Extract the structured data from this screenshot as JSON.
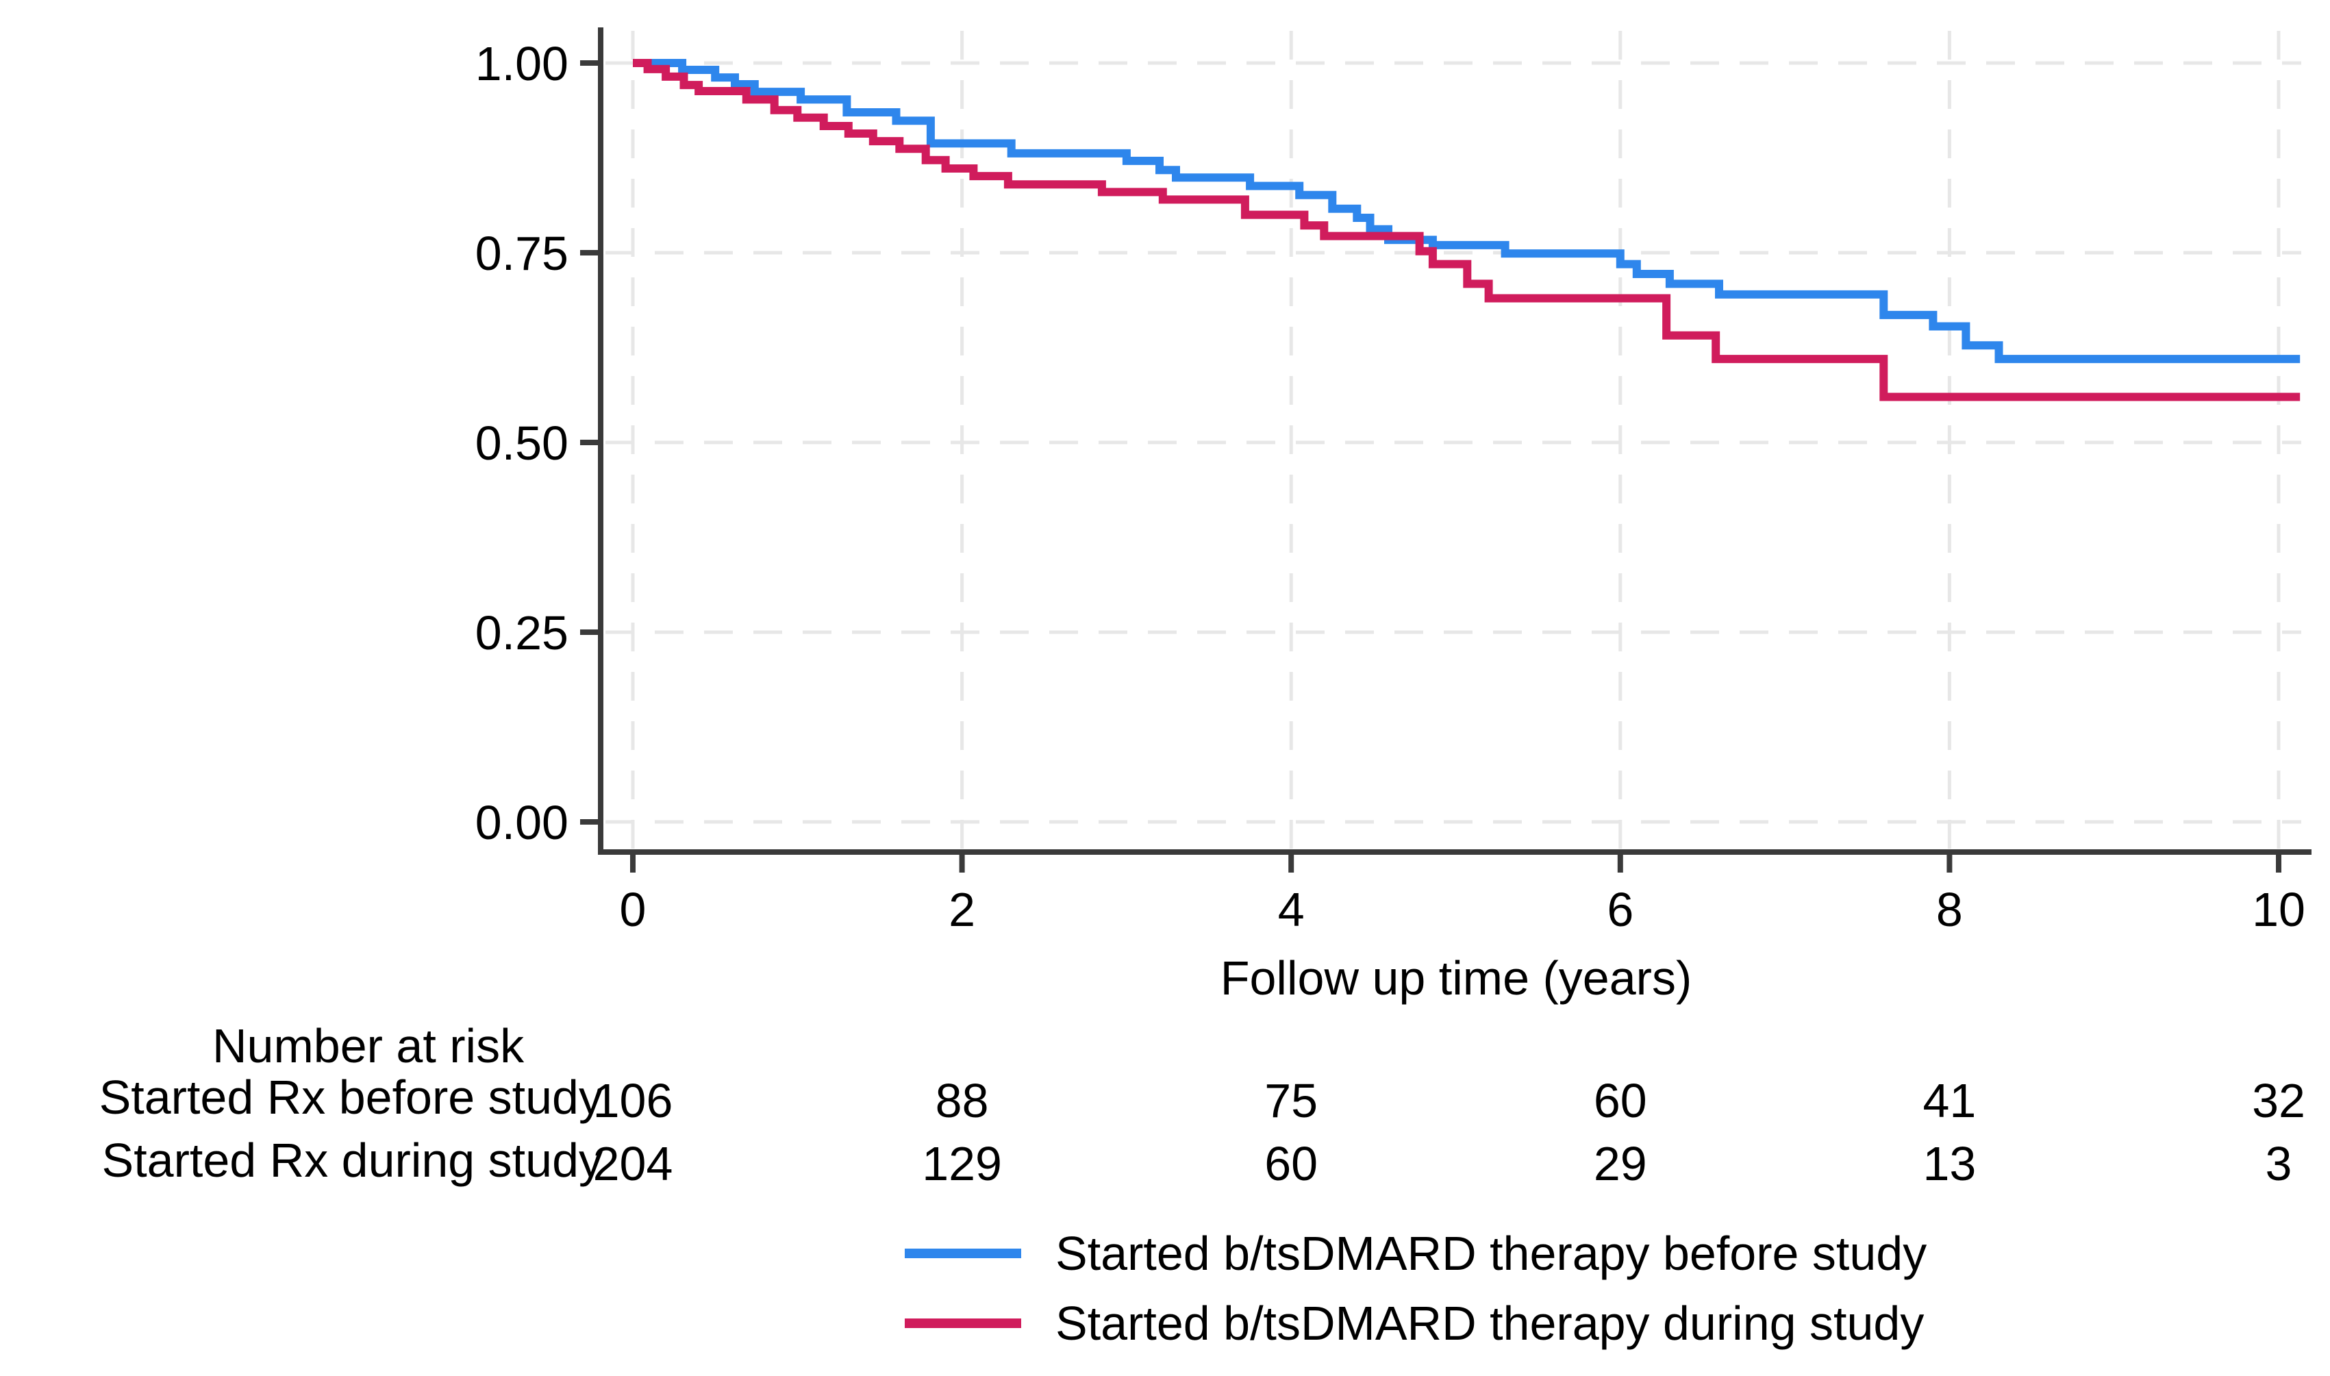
{
  "chart_data": {
    "type": "line",
    "subtype": "kaplan-meier-step",
    "title": "",
    "xlabel": "Follow up time (years)",
    "ylabel": "",
    "xlim": [
      0,
      10
    ],
    "ylim": [
      0.0,
      1.0
    ],
    "x_ticks": [
      0,
      2,
      4,
      6,
      8,
      10
    ],
    "y_ticks": [
      1.0,
      0.75,
      0.5,
      0.25,
      0.0
    ],
    "y_tick_labels": [
      "1.00",
      "0.75",
      "0.50",
      "0.25",
      "0.00"
    ],
    "grid": "dashed, both directions, light gray",
    "legend_position": "bottom",
    "series": [
      {
        "name": "Started b/tsDMARD therapy before study",
        "color": "#2E86EC",
        "points": [
          [
            0,
            1.0
          ],
          [
            0.3,
            0.991
          ],
          [
            0.5,
            0.981
          ],
          [
            0.62,
            0.972
          ],
          [
            0.74,
            0.962
          ],
          [
            1.02,
            0.952
          ],
          [
            1.3,
            0.935
          ],
          [
            1.6,
            0.924
          ],
          [
            1.81,
            0.894
          ],
          [
            2.3,
            0.881
          ],
          [
            3.0,
            0.871
          ],
          [
            3.2,
            0.859
          ],
          [
            3.3,
            0.849
          ],
          [
            3.75,
            0.838
          ],
          [
            4.05,
            0.826
          ],
          [
            4.25,
            0.808
          ],
          [
            4.4,
            0.796
          ],
          [
            4.48,
            0.781
          ],
          [
            4.59,
            0.767
          ],
          [
            4.86,
            0.76
          ],
          [
            5.3,
            0.749
          ],
          [
            6.0,
            0.735
          ],
          [
            6.1,
            0.722
          ],
          [
            6.3,
            0.709
          ],
          [
            6.6,
            0.695
          ],
          [
            7.6,
            0.668
          ],
          [
            7.9,
            0.653
          ],
          [
            8.1,
            0.628
          ],
          [
            8.3,
            0.61
          ],
          [
            10.13,
            0.61
          ]
        ]
      },
      {
        "name": "Started b/tsDMARD therapy during study",
        "color": "#D01C5C",
        "points": [
          [
            0,
            1.0
          ],
          [
            0.09,
            0.992
          ],
          [
            0.2,
            0.982
          ],
          [
            0.31,
            0.971
          ],
          [
            0.4,
            0.963
          ],
          [
            0.69,
            0.952
          ],
          [
            0.86,
            0.938
          ],
          [
            1.0,
            0.928
          ],
          [
            1.16,
            0.917
          ],
          [
            1.31,
            0.907
          ],
          [
            1.46,
            0.897
          ],
          [
            1.62,
            0.887
          ],
          [
            1.78,
            0.872
          ],
          [
            1.9,
            0.861
          ],
          [
            2.07,
            0.851
          ],
          [
            2.28,
            0.84
          ],
          [
            2.85,
            0.83
          ],
          [
            3.22,
            0.82
          ],
          [
            3.72,
            0.8
          ],
          [
            4.08,
            0.786
          ],
          [
            4.2,
            0.772
          ],
          [
            4.78,
            0.752
          ],
          [
            4.86,
            0.735
          ],
          [
            5.07,
            0.709
          ],
          [
            5.2,
            0.69
          ],
          [
            6.28,
            0.641
          ],
          [
            6.58,
            0.61
          ],
          [
            7.6,
            0.56
          ],
          [
            10.13,
            0.56
          ]
        ]
      }
    ]
  },
  "risk_table": {
    "header": "Number at risk",
    "times": [
      0,
      2,
      4,
      6,
      8,
      10
    ],
    "rows": [
      {
        "label": "Started Rx before study",
        "counts": [
          106,
          88,
          75,
          60,
          41,
          32
        ]
      },
      {
        "label": "Started Rx during study",
        "counts": [
          204,
          129,
          60,
          29,
          13,
          3
        ]
      }
    ]
  },
  "legend": {
    "items": [
      {
        "label": "Started b/tsDMARD therapy before study",
        "color": "#2E86EC"
      },
      {
        "label": "Started b/tsDMARD therapy during study",
        "color": "#D01C5C"
      }
    ]
  },
  "colors": {
    "axis": "#3A3A3A",
    "gridline": "#E7E7E7",
    "text": "#000000",
    "background": "#FFFFFF"
  }
}
